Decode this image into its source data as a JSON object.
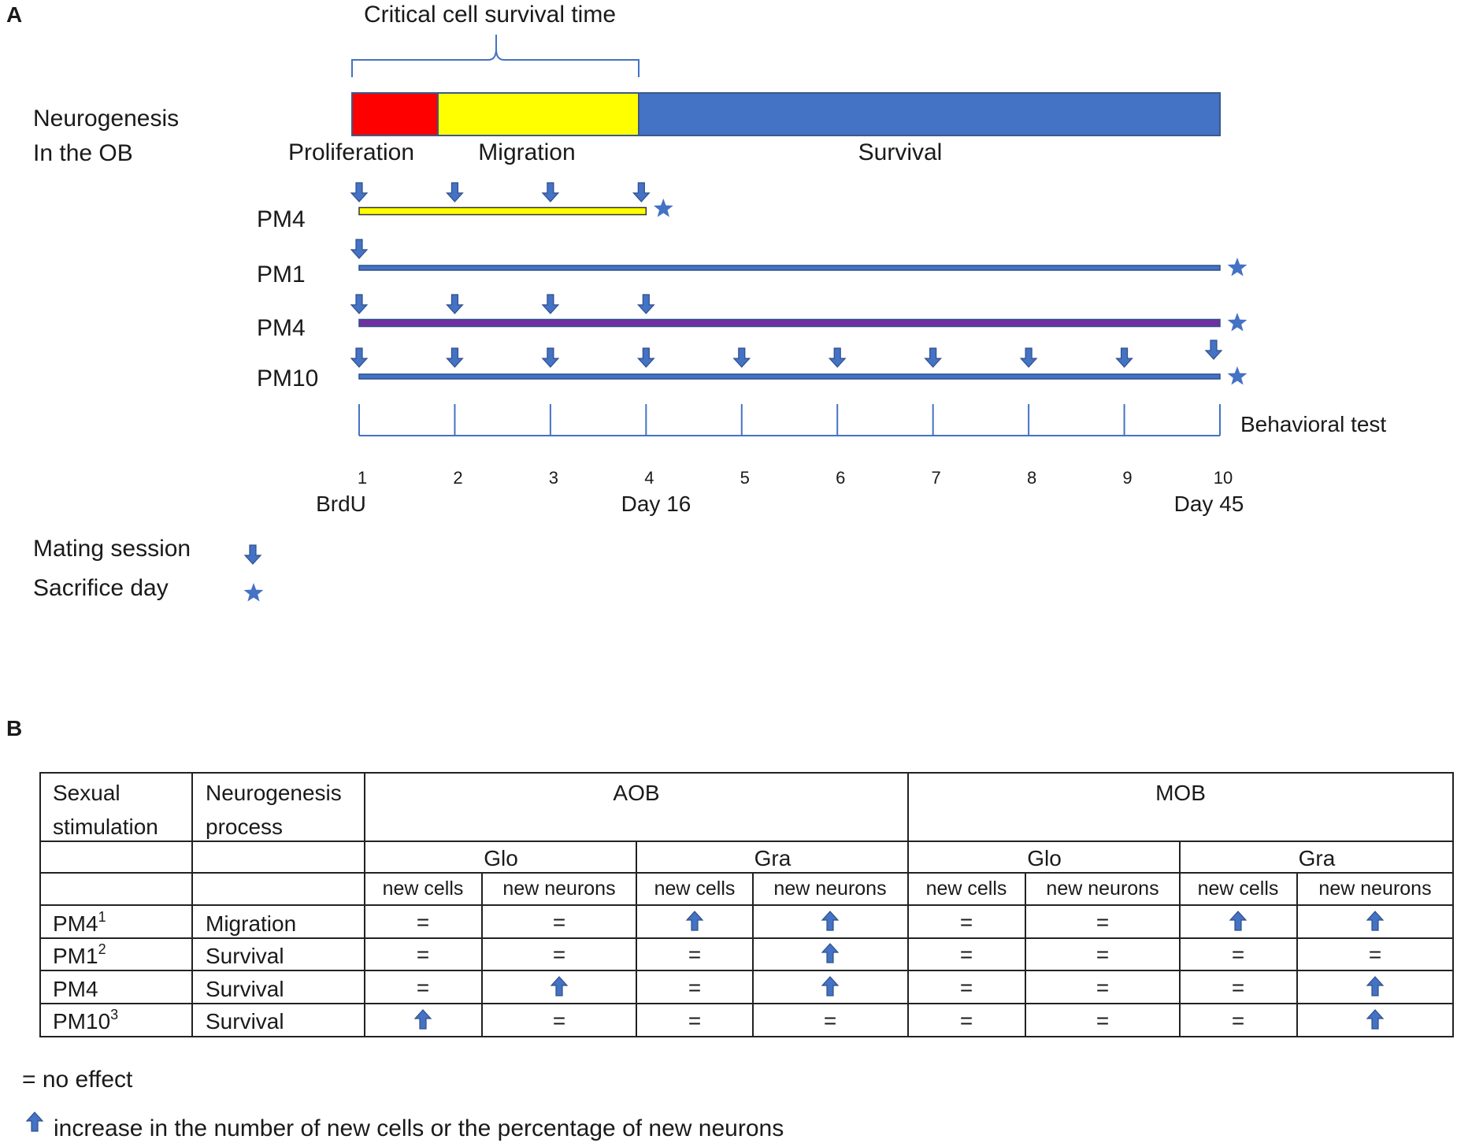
{
  "panel_a": {
    "label": "A",
    "bracket_label": "Critical cell survival time",
    "row_label_line1": "Neurogenesis",
    "row_label_line2": "In the OB",
    "phases": [
      {
        "label": "Proliferation",
        "color": "#ff0000"
      },
      {
        "label": "Migration",
        "color": "#ffff00"
      },
      {
        "label": "Survival",
        "color": "#4472c4"
      }
    ],
    "groups": [
      {
        "name": "PM4",
        "line_color": "#ffff00",
        "mating_sessions": [
          1,
          2,
          3,
          4
        ],
        "sacrifice": 4
      },
      {
        "name": "PM1",
        "line_color": "#4472c4",
        "mating_sessions": [
          1
        ],
        "sacrifice": 10
      },
      {
        "name": "PM4",
        "line_color": "#7030a0",
        "mating_sessions": [
          1,
          2,
          3,
          4
        ],
        "sacrifice": 10
      },
      {
        "name": "PM10",
        "line_color": "#4472c4",
        "mating_sessions": [
          1,
          2,
          3,
          4,
          5,
          6,
          7,
          8,
          9,
          10
        ],
        "sacrifice": 10
      }
    ],
    "timeline_ticks": [
      "1",
      "2",
      "3",
      "4",
      "5",
      "6",
      "7",
      "8",
      "9",
      "10"
    ],
    "behavioral_test": "Behavioral test",
    "sublabels": {
      "brdu": "BrdU",
      "day16": "Day 16",
      "day45": "Day 45"
    },
    "legend": {
      "mating": "Mating session",
      "sacrifice": "Sacrifice day"
    },
    "icon_color": "#4472c4"
  },
  "panel_b": {
    "label": "B",
    "header": {
      "col1": [
        "Sexual",
        "stimulation"
      ],
      "col2": [
        "Neurogenesis",
        "process"
      ],
      "aob": "AOB",
      "mob": "MOB",
      "glo": "Glo",
      "gra": "Gra",
      "new_cells": "new cells",
      "new_neurons": "new neurons"
    },
    "rows": [
      {
        "group": "PM4",
        "sup": "1",
        "process": "Migration",
        "effects": [
          "=",
          "=",
          "up",
          "up",
          "=",
          "=",
          "up",
          "up"
        ]
      },
      {
        "group": "PM1",
        "sup": "2",
        "process": "Survival",
        "effects": [
          "=",
          "=",
          "=",
          "up",
          "=",
          "=",
          "=",
          "="
        ]
      },
      {
        "group": "PM4",
        "sup": "",
        "process": "Survival",
        "effects": [
          "=",
          "up",
          "=",
          "up",
          "=",
          "=",
          "=",
          "up"
        ]
      },
      {
        "group": "PM10",
        "sup": "3",
        "process": "Survival",
        "effects": [
          "up",
          "=",
          "=",
          "=",
          "=",
          "=",
          "=",
          "up"
        ]
      }
    ],
    "legend_no_effect": "= no effect",
    "legend_increase": "increase in the number  of new cells or  the percentage of new neurons"
  }
}
